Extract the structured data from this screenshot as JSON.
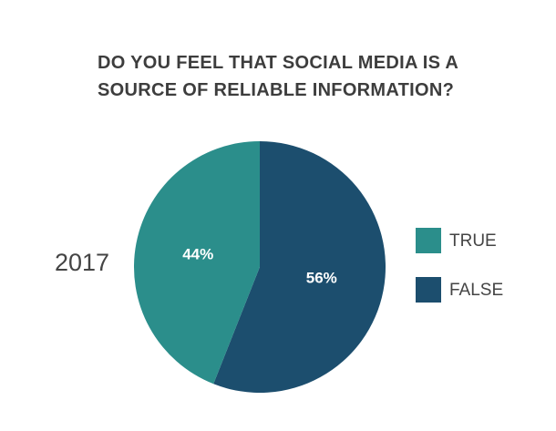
{
  "chart_data": {
    "type": "pie",
    "title": "DO YOU FEEL THAT SOCIAL MEDIA IS A SOURCE OF RELIABLE INFORMATION?",
    "subtitle": "2017",
    "categories": [
      "TRUE",
      "FALSE"
    ],
    "values": [
      44,
      56
    ],
    "value_labels": [
      "44%",
      "56%"
    ],
    "colors": [
      "#2b8e8b",
      "#1c4e6e"
    ],
    "legend": "right"
  }
}
